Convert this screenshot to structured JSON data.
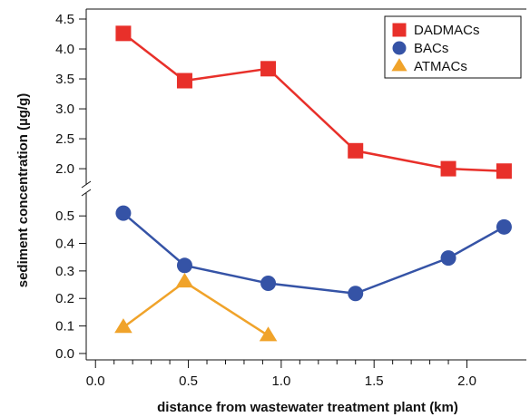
{
  "chart_data": {
    "type": "line",
    "xlabel": "distance from wastewater treatment plant (km)",
    "ylabel": "sediment concentration (µg/g)",
    "x_ticks": [
      "0.0",
      "0.5",
      "1.0",
      "1.5",
      "2.0"
    ],
    "xlim": [
      -0.05,
      2.32
    ],
    "upper_panel": {
      "ylim": [
        1.85,
        4.5
      ],
      "y_ticks": [
        "2.0",
        "2.5",
        "3.0",
        "3.5",
        "4.0",
        "4.5"
      ]
    },
    "lower_panel": {
      "ylim": [
        -0.02,
        0.55
      ],
      "y_ticks": [
        "0.0",
        "0.1",
        "0.2",
        "0.3",
        "0.4",
        "0.5"
      ]
    },
    "axis_break": true,
    "grid": false,
    "legend_position": "top-right",
    "series": [
      {
        "name": "DADMACs",
        "panel": "upper",
        "marker": "square",
        "color": "#e8302a",
        "x": [
          0.15,
          0.48,
          0.93,
          1.4,
          1.9,
          2.2
        ],
        "y": [
          4.26,
          3.47,
          3.67,
          2.3,
          2.0,
          1.96
        ]
      },
      {
        "name": "BACs",
        "panel": "lower",
        "marker": "circle",
        "color": "#3553a6",
        "x": [
          0.15,
          0.48,
          0.93,
          1.4,
          1.9,
          2.2
        ],
        "y": [
          0.51,
          0.32,
          0.255,
          0.218,
          0.347,
          0.46
        ]
      },
      {
        "name": "ATMACs",
        "panel": "lower",
        "marker": "triangle",
        "color": "#f0a32a",
        "x": [
          0.15,
          0.48,
          0.93
        ],
        "y": [
          0.095,
          0.26,
          0.065
        ]
      }
    ]
  }
}
